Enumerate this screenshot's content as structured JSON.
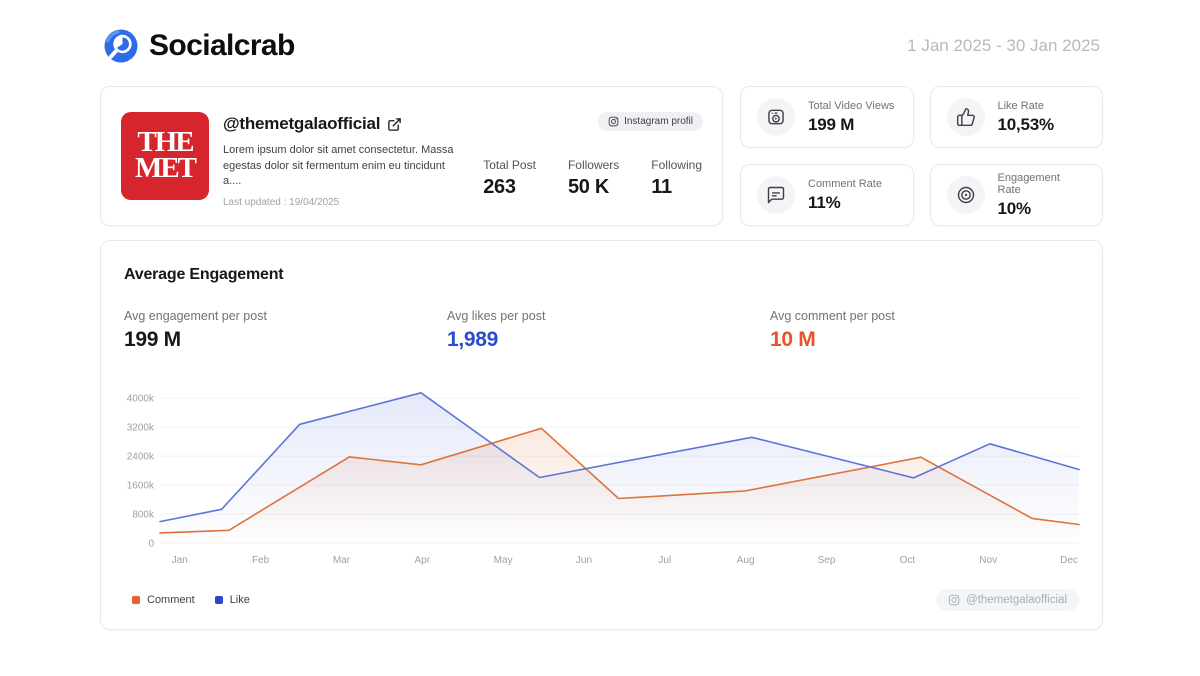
{
  "header": {
    "brand": "Socialcrab",
    "date_range": "1 Jan 2025 - 30 Jan 2025"
  },
  "profile": {
    "avatar_line1": "THE",
    "avatar_line2": "MET",
    "username": "@themetgalaofficial",
    "badge": "Instagram profil",
    "bio": "Lorem ipsum dolor sit amet consectetur. Massa egestas dolor sit fermentum enim eu tincidunt a....",
    "last_updated": "Last updated : 19/04/2025",
    "stats": [
      {
        "label": "Total Post",
        "value": "263"
      },
      {
        "label": "Followers",
        "value": "50 K"
      },
      {
        "label": "Following",
        "value": "11"
      }
    ]
  },
  "stat_cards": [
    {
      "label": "Total Video Views",
      "value": "199 M",
      "icon": "video-icon"
    },
    {
      "label": "Like Rate",
      "value": "10,53%",
      "icon": "thumb-up-icon"
    },
    {
      "label": "Comment Rate",
      "value": "11%",
      "icon": "comment-icon"
    },
    {
      "label": "Engagement Rate",
      "value": "10%",
      "icon": "target-icon"
    }
  ],
  "engagement": {
    "title": "Average Engagement",
    "metrics": [
      {
        "label": "Avg engagement per post",
        "value": "199 M",
        "color": "#18181b"
      },
      {
        "label": "Avg likes per post",
        "value": "1,989",
        "color": "#2d4bcc"
      },
      {
        "label": "Avg comment per post",
        "value": "10 M",
        "color": "#e4552c"
      }
    ],
    "watermark": "@themetgalaofficial"
  },
  "legend": [
    {
      "label": "Comment",
      "color": "#e2632c"
    },
    {
      "label": "Like",
      "color": "#2c46c9"
    }
  ],
  "chart_data": {
    "type": "line",
    "title": "Average Engagement",
    "x_labels": [
      "Jan",
      "Feb",
      "Mar",
      "Apr",
      "May",
      "Jun",
      "Jul",
      "Aug",
      "Sep",
      "Oct",
      "Nov",
      "Dec"
    ],
    "y_ticks": [
      {
        "value": 0,
        "label": "0"
      },
      {
        "value": 800,
        "label": "800k"
      },
      {
        "value": 1600,
        "label": "1600k"
      },
      {
        "value": 2400,
        "label": "2400k"
      },
      {
        "value": 3200,
        "label": "3200k"
      },
      {
        "value": 4000,
        "label": "4000k"
      }
    ],
    "unit": "thousands",
    "ylim": [
      0,
      4200
    ],
    "grid": "horizontal",
    "legend_position": "bottom-left",
    "series": [
      {
        "name": "Comment",
        "color": "#df723d",
        "points": [
          [
            0,
            280
          ],
          [
            0.075,
            350
          ],
          [
            0.206,
            2380
          ],
          [
            0.284,
            2160
          ],
          [
            0.415,
            3170
          ],
          [
            0.499,
            1230
          ],
          [
            0.637,
            1440
          ],
          [
            0.828,
            2370
          ],
          [
            0.949,
            680
          ],
          [
            1,
            510
          ]
        ]
      },
      {
        "name": "Like",
        "color": "#5b76d8",
        "points": [
          [
            0,
            590
          ],
          [
            0.067,
            930
          ],
          [
            0.152,
            3280
          ],
          [
            0.284,
            4150
          ],
          [
            0.413,
            1810
          ],
          [
            0.644,
            2920
          ],
          [
            0.82,
            1800
          ],
          [
            0.903,
            2740
          ],
          [
            1,
            2030
          ]
        ]
      }
    ]
  }
}
